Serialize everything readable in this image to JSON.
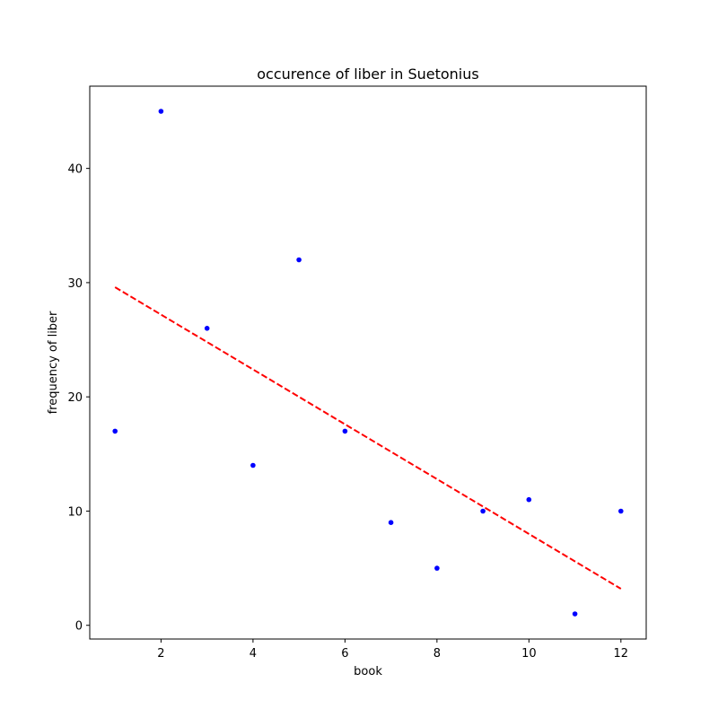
{
  "chart_data": {
    "type": "scatter",
    "title": "occurence of liber in Suetonius",
    "xlabel": "book",
    "ylabel": "frequency of liber",
    "xlim": [
      0.45,
      12.55
    ],
    "ylim": [
      -1.2,
      47.2
    ],
    "xticks": [
      2,
      4,
      6,
      8,
      10,
      12
    ],
    "yticks": [
      0,
      10,
      20,
      30,
      40
    ],
    "grid": false,
    "series": [
      {
        "kind": "points",
        "color": "#0000ff",
        "x": [
          1,
          2,
          3,
          4,
          5,
          6,
          7,
          8,
          9,
          10,
          11,
          12
        ],
        "y": [
          17,
          45,
          26,
          14,
          32,
          17,
          9,
          5,
          10,
          11,
          1,
          10
        ]
      },
      {
        "kind": "trend-line",
        "color": "#ff0000",
        "style": "dashed",
        "x": [
          1,
          12
        ],
        "y": [
          29.6,
          3.2
        ]
      }
    ]
  }
}
